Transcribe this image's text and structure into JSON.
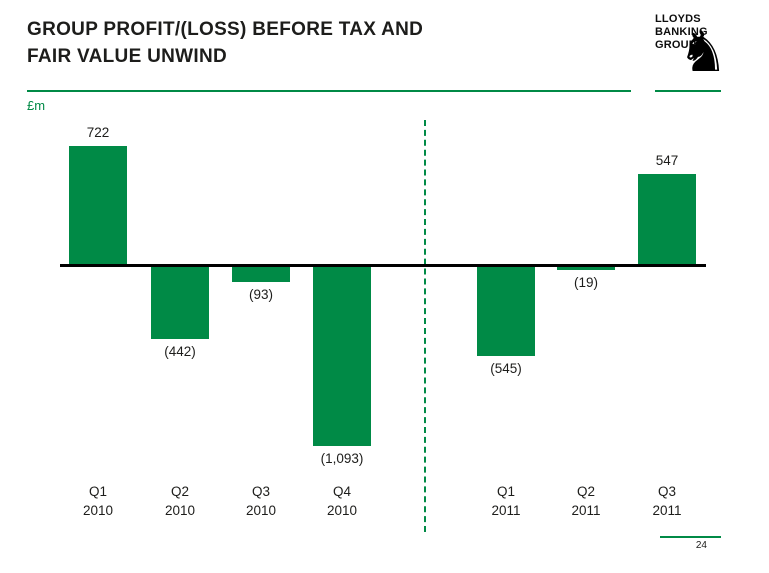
{
  "header": {
    "title_line1": "GROUP PROFIT/(LOSS) BEFORE TAX AND",
    "title_line2": "FAIR VALUE UNWIND"
  },
  "logo": {
    "line1": "LLOYDS",
    "line2": "BANKING",
    "line3": "GROUP",
    "horse_icon": "♞"
  },
  "footer": {
    "page_number": "24"
  },
  "colors": {
    "accent_green": "#008a46",
    "text_dark": "#1d1d1b",
    "axis_black": "#000000"
  },
  "chart_data": {
    "type": "bar",
    "title": "Group profit/(loss) before tax and fair value unwind",
    "unit": "£m",
    "categories": [
      "Q1 2010",
      "Q2 2010",
      "Q3 2010",
      "Q4 2010",
      "Q1 2011",
      "Q2 2011",
      "Q3 2011"
    ],
    "values": [
      722,
      -442,
      -93,
      -1093,
      -545,
      -19,
      547
    ],
    "labels": [
      "722",
      "(442)",
      "(93)",
      "(1,093)",
      "(545)",
      "(19)",
      "547"
    ],
    "bar_color": "#008a46",
    "ylim": [
      -1200,
      800
    ],
    "grid": false,
    "legend": false,
    "divider_after_category": "Q4 2010"
  }
}
